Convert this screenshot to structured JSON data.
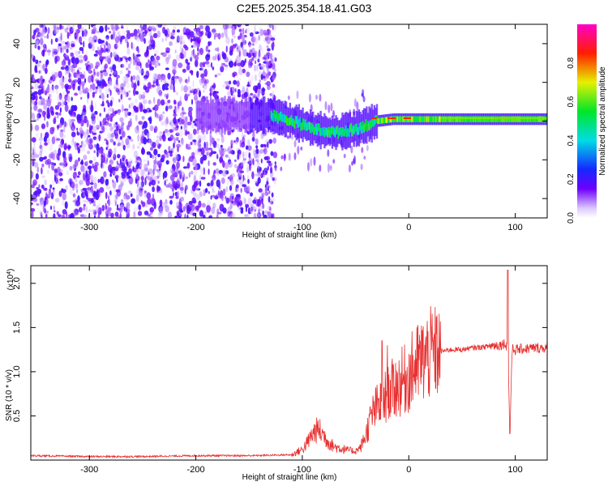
{
  "title": "C2E5.2025.354.18.41.G03",
  "chart_data": [
    {
      "type": "heatmap",
      "title": "C2E5.2025.354.18.41.G03",
      "xlabel": "Height of straight line (km)",
      "ylabel": "Frequency (Hz)",
      "xlim": [
        -355,
        130
      ],
      "ylim": [
        -50,
        50
      ],
      "xticks": [
        -300,
        -200,
        -100,
        0,
        100
      ],
      "xtick_labels": [
        "-300",
        "-200",
        "-100",
        "0",
        "100"
      ],
      "yticks": [
        -40,
        -20,
        0,
        20,
        40
      ],
      "ytick_labels": [
        "-40",
        "-20",
        "0",
        "20",
        "40"
      ],
      "colorbar": {
        "label": "Normalized spectral amplitude",
        "range": [
          0.0,
          1.0
        ],
        "ticks": [
          0.0,
          0.2,
          0.4,
          0.6,
          0.8
        ],
        "tick_labels": [
          "0.0",
          "0.2",
          "0.4",
          "0.6",
          "0.8"
        ],
        "colormap": "rainbow (white-purple-blue-cyan-green-yellow-red-magenta)"
      },
      "ridge_center": [
        {
          "x": -150,
          "y": 3
        },
        {
          "x": -130,
          "y": 3
        },
        {
          "x": -110,
          "y": 0
        },
        {
          "x": -90,
          "y": -4
        },
        {
          "x": -70,
          "y": -6
        },
        {
          "x": -50,
          "y": -4
        },
        {
          "x": -30,
          "y": 0
        },
        {
          "x": -15,
          "y": 1
        },
        {
          "x": 0,
          "y": 1
        },
        {
          "x": 50,
          "y": 1
        },
        {
          "x": 100,
          "y": 1
        },
        {
          "x": 130,
          "y": 1
        }
      ]
    },
    {
      "type": "line",
      "xlabel": "Height of straight line (km)",
      "ylabel": "SNR (10 * v/v)",
      "yscale_label": "(x10",
      "yscale_exp": "4",
      "yscale_close": ")",
      "xlim": [
        -355,
        130
      ],
      "ylim": [
        0,
        2.2
      ],
      "xticks": [
        -300,
        -200,
        -100,
        0,
        100
      ],
      "xtick_labels": [
        "-300",
        "-200",
        "-100",
        "0",
        "100"
      ],
      "yticks": [
        0.5,
        1.0,
        1.5,
        2.0
      ],
      "ytick_labels": [
        "0.5",
        "1.0",
        "1.5",
        "2.0"
      ],
      "series": [
        {
          "name": "SNR",
          "color": "#e83030",
          "x": [
            -355,
            -300,
            -250,
            -200,
            -150,
            -110,
            -100,
            -95,
            -90,
            -85,
            -80,
            -75,
            -70,
            -60,
            -50,
            -45,
            -40,
            -35,
            -30,
            -25,
            -20,
            -15,
            -10,
            -5,
            0,
            5,
            10,
            15,
            20,
            30,
            40,
            50,
            60,
            70,
            80,
            85,
            90,
            93,
            95,
            97,
            100,
            110,
            120,
            130
          ],
          "y": [
            0.05,
            0.04,
            0.04,
            0.05,
            0.05,
            0.06,
            0.12,
            0.2,
            0.3,
            0.35,
            0.28,
            0.2,
            0.15,
            0.12,
            0.1,
            0.15,
            0.3,
            0.5,
            0.6,
            0.65,
            0.75,
            0.8,
            0.85,
            0.9,
            0.95,
            1.05,
            1.1,
            1.15,
            1.2,
            1.23,
            1.25,
            1.25,
            1.27,
            1.28,
            1.3,
            1.3,
            1.32,
            1.28,
            0.3,
            1.25,
            1.25,
            1.26,
            1.27,
            1.27
          ]
        }
      ]
    }
  ]
}
